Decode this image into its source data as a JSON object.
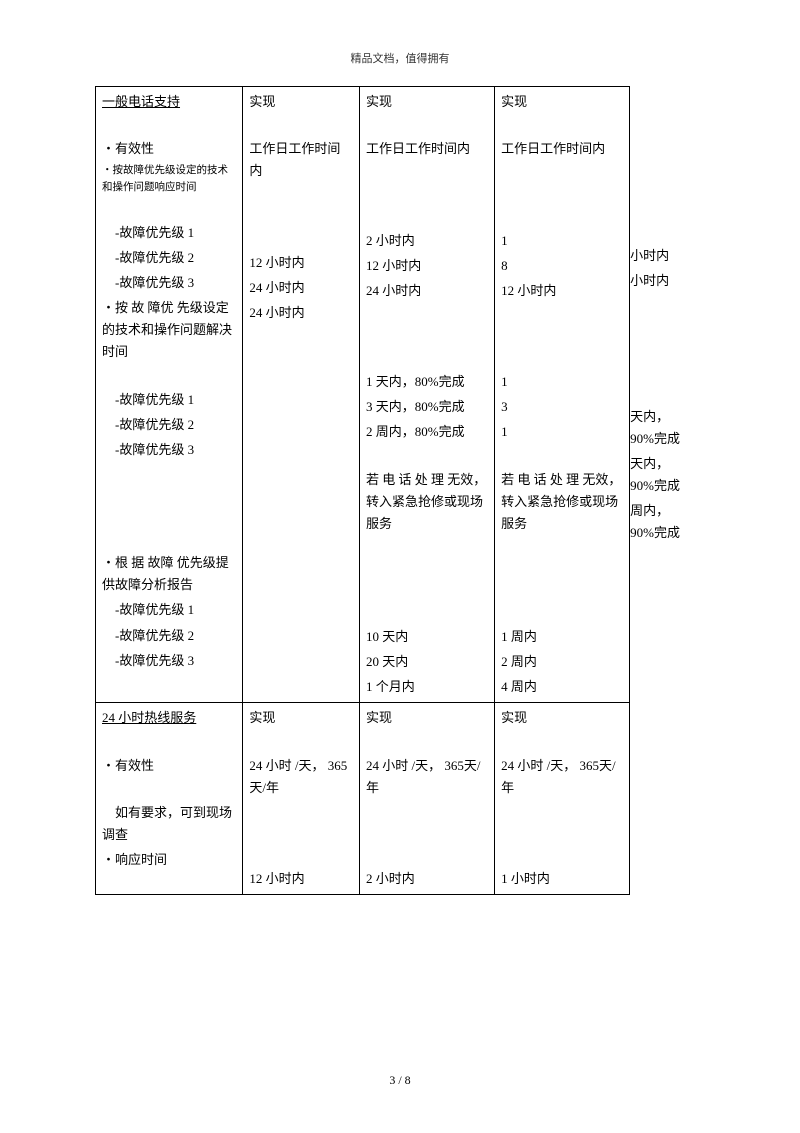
{
  "header": "精品文档，值得拥有",
  "pagenum": "3 / 8",
  "section1": {
    "col1": {
      "title": "一般电话支持",
      "effectiveness": "・有效性",
      "note": "・按故障优先级设定的技术和操作问题响应时间",
      "p1": "-故障优先级 1",
      "p2": "-故障优先级 2",
      "p3": "-故障优先级 3",
      "resolve": "・按 故 障优 先级设定的技术和操作问题解决时间",
      "rp1": "-故障优先级 1",
      "rp2": "-故障优先级 2",
      "rp3": "-故障优先级 3",
      "report": "・根 据 故障 优先级提供故障分析报告",
      "ap1": "-故障优先级 1",
      "ap2": "-故障优先级 2",
      "ap3": "-故障优先级 3"
    },
    "col2": {
      "l1": "实现",
      "l2": "工作日工作时间内",
      "t1": "12 小时内",
      "t2": "24 小时内",
      "t3": "24 小时内"
    },
    "col3": {
      "l1": "实现",
      "l2": "工作日工作时间内",
      "t1": "2 小时内",
      "t2": "12 小时内",
      "t3": "24 小时内",
      "r1": "1 天内，80%完成",
      "r2": "3 天内，80%完成",
      "r3": "2 周内，80%完成",
      "escalate": "若 电 话 处 理 无效，转入紧急抢修或现场服务",
      "a1": "10 天内",
      "a2": "20 天内",
      "a3": "1 个月内"
    },
    "col4": {
      "l1": "实现",
      "l2": "工作日工作时间内",
      "t1": "1",
      "t2": "8",
      "t3": "12 小时内",
      "r1": "1",
      "r2": "3",
      "r3": "1",
      "escalate": "若 电 话 处 理 无效，转入紧急抢修或现场服务",
      "a1": "1 周内",
      "a2": "2 周内",
      "a3": "4 周内"
    },
    "col5": {
      "t1": "小时内",
      "t2": "小时内",
      "r1a": "天内，",
      "r1b": "90%完成",
      "r2a": "天内，",
      "r2b": "90%完成",
      "r3a": "周内，",
      "r3b": "90%完成"
    }
  },
  "section2": {
    "col1": {
      "title": "24 小时热线服务",
      "eff": "・有效性",
      "note": "　如有要求，可到现场调查",
      "resp": "・响应时间"
    },
    "col2": {
      "l1": "实现",
      "l2": "24 小时 /天， 365天/年",
      "t1": "12 小时内"
    },
    "col3": {
      "l1": "实现",
      "l2": "24 小时 /天， 365天/年",
      "t1": "2 小时内"
    },
    "col4": {
      "l1": "实现",
      "l2": "24 小时 /天， 365天/年",
      "t1": "1 小时内"
    }
  }
}
